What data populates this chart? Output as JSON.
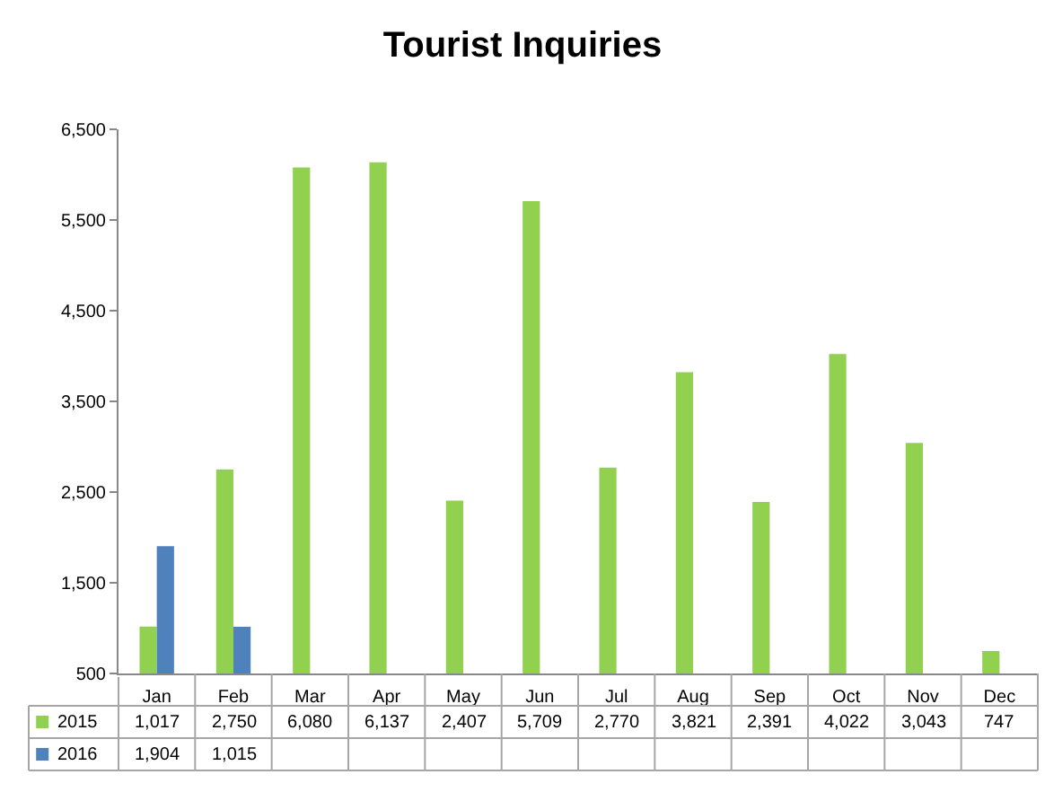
{
  "chart_data": {
    "type": "bar",
    "title": "Tourist Inquiries",
    "categories": [
      "Jan",
      "Feb",
      "Mar",
      "Apr",
      "May",
      "Jun",
      "Jul",
      "Aug",
      "Sep",
      "Oct",
      "Nov",
      "Dec"
    ],
    "series": [
      {
        "name": "2015",
        "color": "#92d050",
        "values": [
          1017,
          2750,
          6080,
          6137,
          2407,
          5709,
          2770,
          3821,
          2391,
          4022,
          3043,
          747
        ],
        "value_labels": [
          "1,017",
          "2,750",
          "6,080",
          "6,137",
          "2,407",
          "5,709",
          "2,770",
          "3,821",
          "2,391",
          "4,022",
          "3,043",
          "747"
        ]
      },
      {
        "name": "2016",
        "color": "#4f81bd",
        "values": [
          1904,
          1015,
          null,
          null,
          null,
          null,
          null,
          null,
          null,
          null,
          null,
          null
        ],
        "value_labels": [
          "1,904",
          "1,015",
          null,
          null,
          null,
          null,
          null,
          null,
          null,
          null,
          null,
          null
        ]
      }
    ],
    "ylim": [
      500,
      6500
    ],
    "yticks": [
      {
        "value": 500,
        "label": "500"
      },
      {
        "value": 1500,
        "label": "1,500"
      },
      {
        "value": 2500,
        "label": "2,500"
      },
      {
        "value": 3500,
        "label": "3,500"
      },
      {
        "value": 4500,
        "label": "4,500"
      },
      {
        "value": 5500,
        "label": "5,500"
      },
      {
        "value": 6500,
        "label": "6,500"
      }
    ],
    "legend": "bottom left"
  }
}
